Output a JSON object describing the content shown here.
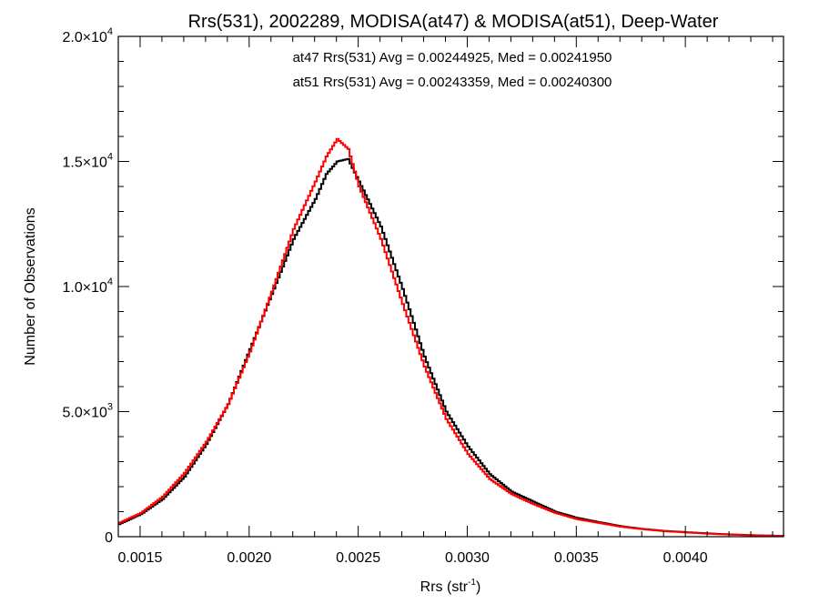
{
  "chart_data": {
    "type": "line",
    "step": true,
    "title": "Rrs(531), 2002289, MODISA(at47) & MODISA(at51), Deep-Water",
    "xlabel_main": "Rrs (str",
    "xlabel_sup": "-1",
    "xlabel_close": ")",
    "ylabel": "Number of Observations",
    "xlim": [
      0.0014,
      0.00445
    ],
    "ylim": [
      0,
      20000
    ],
    "x_ticks": [
      {
        "value": 0.0015,
        "label": "0.0015"
      },
      {
        "value": 0.002,
        "label": "0.0020"
      },
      {
        "value": 0.0025,
        "label": "0.0025"
      },
      {
        "value": 0.003,
        "label": "0.0030"
      },
      {
        "value": 0.0035,
        "label": "0.0035"
      },
      {
        "value": 0.004,
        "label": "0.0040"
      }
    ],
    "y_ticks": [
      {
        "value": 0,
        "label": "0",
        "sup": ""
      },
      {
        "value": 5000,
        "label": "5.0×10",
        "sup": "3"
      },
      {
        "value": 10000,
        "label": "1.0×10",
        "sup": "4"
      },
      {
        "value": 15000,
        "label": "1.5×10",
        "sup": "4"
      },
      {
        "value": 20000,
        "label": "2.0×10",
        "sup": "4"
      }
    ],
    "annotations": [
      {
        "text": "at47 Rrs(531) Avg = 0.00244925, Med = 0.00241950",
        "color": "#000000"
      },
      {
        "text": "at51 Rrs(531) Avg = 0.00243359, Med = 0.00240300",
        "color": "#ff0000"
      }
    ],
    "series": [
      {
        "color": "#000000",
        "x": [
          0.0014,
          0.0015,
          0.0016,
          0.0017,
          0.0018,
          0.0019,
          0.002,
          0.0021,
          0.0022,
          0.0023,
          0.00235,
          0.0024,
          0.00245,
          0.0025,
          0.0026,
          0.0027,
          0.0028,
          0.0029,
          0.003,
          0.0031,
          0.0032,
          0.0033,
          0.0034,
          0.0035,
          0.0036,
          0.0037,
          0.0038,
          0.0039,
          0.004,
          0.0041,
          0.0042,
          0.0043,
          0.00445
        ],
        "y": [
          500,
          900,
          1500,
          2400,
          3700,
          5300,
          7500,
          9700,
          11900,
          13500,
          14500,
          15000,
          15100,
          14200,
          12400,
          9900,
          7200,
          5000,
          3600,
          2500,
          1800,
          1400,
          1000,
          750,
          580,
          420,
          310,
          230,
          180,
          130,
          90,
          60,
          30
        ]
      },
      {
        "color": "#ff0000",
        "x": [
          0.0014,
          0.0015,
          0.0016,
          0.0017,
          0.0018,
          0.0019,
          0.002,
          0.0021,
          0.0022,
          0.0023,
          0.00235,
          0.0024,
          0.00245,
          0.0025,
          0.0026,
          0.0027,
          0.0028,
          0.0029,
          0.003,
          0.0031,
          0.0032,
          0.0033,
          0.0034,
          0.0035,
          0.0036,
          0.0037,
          0.0038,
          0.0039,
          0.004,
          0.0041,
          0.0042,
          0.0043,
          0.00445
        ],
        "y": [
          550,
          950,
          1600,
          2550,
          3800,
          5300,
          7400,
          9800,
          12300,
          14200,
          15200,
          15900,
          15500,
          14000,
          11900,
          9300,
          6800,
          4700,
          3300,
          2300,
          1700,
          1300,
          950,
          700,
          550,
          400,
          300,
          220,
          170,
          120,
          85,
          55,
          25
        ]
      }
    ]
  }
}
